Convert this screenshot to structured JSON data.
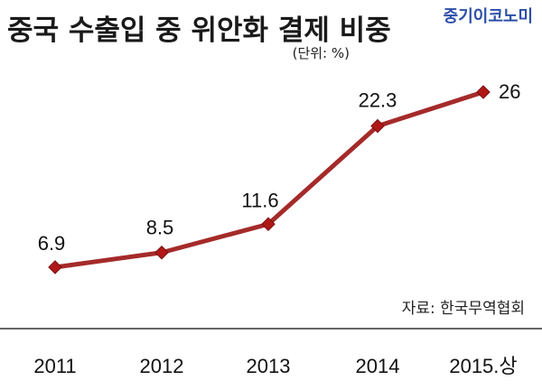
{
  "title": "중국 수출입 중 위안화 결제 비중",
  "brand": "중기이코노미",
  "unit_note": "(단위: %)",
  "source_note": "자료: 한국무역협회",
  "colors": {
    "line": "#a52a2a",
    "marker": "#b01818",
    "brand": "#2b4fa8",
    "rule": "#333333"
  },
  "chart_data": {
    "type": "line",
    "title": "중국 수출입 중 위안화 결제 비중",
    "categories": [
      "2011",
      "2012",
      "2013",
      "2014",
      "2015.상"
    ],
    "values": [
      6.9,
      8.5,
      11.6,
      22.3,
      26
    ],
    "data_labels": [
      "6.9",
      "8.5",
      "11.6",
      "22.3",
      "26"
    ],
    "xlabel": "",
    "ylabel": "",
    "unit": "%",
    "grid": false,
    "legend": "none"
  }
}
